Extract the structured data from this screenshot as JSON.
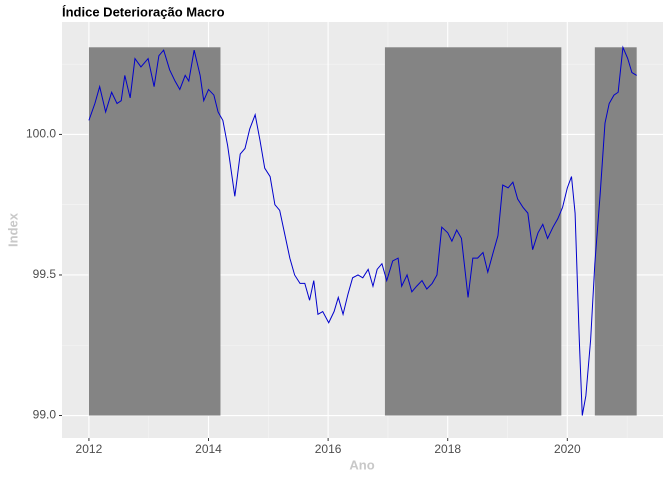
{
  "chart_data": {
    "type": "line",
    "title": "Índice Deterioração Macro",
    "x_label": "Ano",
    "y_label": "Index",
    "xlim": [
      2011.55,
      2021.6
    ],
    "ylim": [
      98.92,
      100.4
    ],
    "xticks": [
      2012,
      2014,
      2016,
      2018,
      2020
    ],
    "yticks": [
      {
        "value": 99,
        "label": "99.0"
      },
      99.5,
      {
        "value": 100,
        "label": "100.0"
      }
    ],
    "x_minor_ticks": [
      2013,
      2015,
      2017,
      2019,
      2021
    ],
    "y_minor_ticks": [
      99.25,
      99.75,
      100.25
    ],
    "grid": true,
    "shaded_regions": {
      "color": "#848484",
      "ymin": 99.0,
      "ymax": 100.31,
      "start": [
        2012.0,
        2016.95,
        2020.46
      ],
      "end": [
        2014.2,
        2019.9,
        2021.16
      ]
    },
    "series": [
      {
        "name": "Index",
        "color": "#0000cc",
        "x": [
          2012.0,
          2012.1,
          2012.18,
          2012.28,
          2012.38,
          2012.47,
          2012.54,
          2012.6,
          2012.69,
          2012.77,
          2012.87,
          2012.99,
          2013.09,
          2013.17,
          2013.25,
          2013.35,
          2013.44,
          2013.52,
          2013.61,
          2013.67,
          2013.76,
          2013.86,
          2013.92,
          2014.0,
          2014.09,
          2014.16,
          2014.24,
          2014.32,
          2014.44,
          2014.53,
          2014.61,
          2014.69,
          2014.78,
          2014.86,
          2014.94,
          2015.03,
          2015.11,
          2015.19,
          2015.28,
          2015.36,
          2015.44,
          2015.53,
          2015.61,
          2015.69,
          2015.76,
          2015.83,
          2015.91,
          2016.01,
          2016.1,
          2016.17,
          2016.25,
          2016.33,
          2016.41,
          2016.5,
          2016.58,
          2016.67,
          2016.75,
          2016.82,
          2016.9,
          2016.98,
          2017.08,
          2017.17,
          2017.23,
          2017.32,
          2017.4,
          2017.48,
          2017.57,
          2017.65,
          2017.74,
          2017.82,
          2017.9,
          2018.0,
          2018.07,
          2018.15,
          2018.23,
          2018.34,
          2018.42,
          2018.5,
          2018.59,
          2018.67,
          2018.76,
          2018.84,
          2018.92,
          2019.01,
          2019.09,
          2019.17,
          2019.26,
          2019.34,
          2019.42,
          2019.51,
          2019.59,
          2019.67,
          2019.76,
          2019.84,
          2019.92,
          2020.0,
          2020.07,
          2020.13,
          2020.2,
          2020.25,
          2020.31,
          2020.39,
          2020.46,
          2020.55,
          2020.63,
          2020.7,
          2020.78,
          2020.85,
          2020.93,
          2021.01,
          2021.08,
          2021.16
        ],
        "values": [
          100.05,
          100.11,
          100.17,
          100.08,
          100.15,
          100.11,
          100.12,
          100.21,
          100.13,
          100.27,
          100.24,
          100.27,
          100.17,
          100.28,
          100.3,
          100.23,
          100.19,
          100.16,
          100.21,
          100.19,
          100.3,
          100.21,
          100.12,
          100.16,
          100.14,
          100.08,
          100.05,
          99.96,
          99.78,
          99.93,
          99.95,
          100.02,
          100.07,
          99.98,
          99.88,
          99.85,
          99.75,
          99.73,
          99.64,
          99.56,
          99.5,
          99.47,
          99.47,
          99.41,
          99.48,
          99.36,
          99.37,
          99.33,
          99.37,
          99.42,
          99.36,
          99.43,
          99.49,
          99.5,
          99.49,
          99.52,
          99.46,
          99.52,
          99.54,
          99.48,
          99.55,
          99.56,
          99.46,
          99.5,
          99.44,
          99.46,
          99.48,
          99.45,
          99.47,
          99.5,
          99.67,
          99.65,
          99.62,
          99.66,
          99.63,
          99.42,
          99.56,
          99.56,
          99.58,
          99.51,
          99.58,
          99.64,
          99.82,
          99.81,
          99.83,
          99.77,
          99.74,
          99.72,
          99.59,
          99.65,
          99.68,
          99.63,
          99.67,
          99.7,
          99.74,
          99.81,
          99.85,
          99.72,
          99.27,
          99.0,
          99.07,
          99.27,
          99.54,
          99.79,
          100.04,
          100.11,
          100.14,
          100.15,
          100.31,
          100.27,
          100.22,
          100.21
        ]
      }
    ]
  }
}
